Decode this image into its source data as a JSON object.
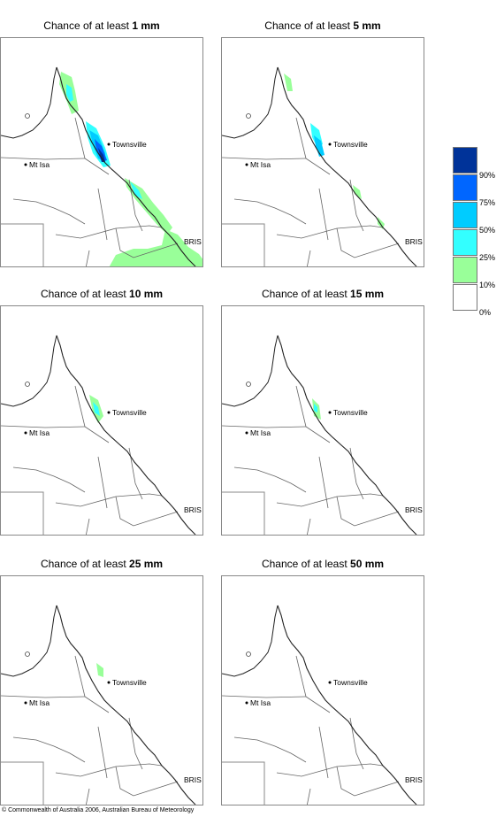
{
  "panels": [
    {
      "title_prefix": "Chance of at least ",
      "amount": "1 mm"
    },
    {
      "title_prefix": "Chance of at least ",
      "amount": "5 mm"
    },
    {
      "title_prefix": "Chance of at least ",
      "amount": "10 mm"
    },
    {
      "title_prefix": "Chance of at least ",
      "amount": "15 mm"
    },
    {
      "title_prefix": "Chance of at least ",
      "amount": "25 mm"
    },
    {
      "title_prefix": "Chance of at least ",
      "amount": "50 mm"
    }
  ],
  "place_labels": {
    "townsville": "Townsville",
    "mt_isa": "Mt Isa",
    "brisbane": "BRIS"
  },
  "legend": {
    "labels": [
      "90%",
      "75%",
      "50%",
      "25%",
      "10%",
      "0%"
    ],
    "colors": [
      "#003399",
      "#0066ff",
      "#00ccff",
      "#33ffff",
      "#99ff99",
      "#ffffff"
    ]
  },
  "copyright": "© Commonwealth of Australia 2006, Australian Bureau of Meteorology"
}
